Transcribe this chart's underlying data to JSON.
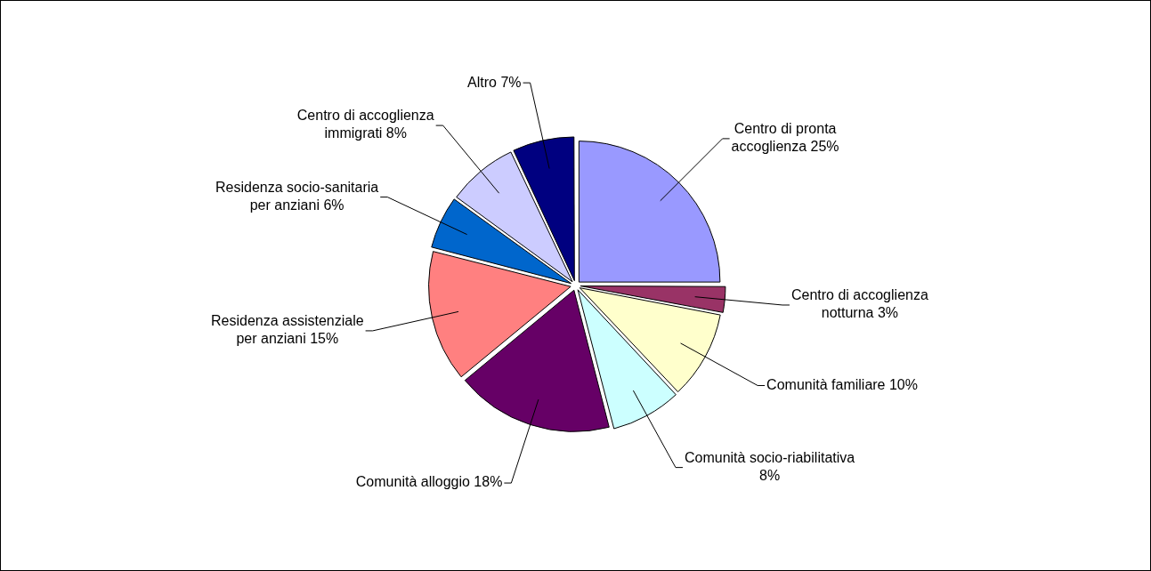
{
  "chart_data": {
    "type": "pie",
    "categories": [
      "Centro di pronta accoglienza",
      "Centro di accoglienza notturna",
      "Comunità familiare",
      "Comunità socio-riabilitativa",
      "Comunità alloggio",
      "Residenza assistenziale per anziani",
      "Residenza socio-sanitaria per anziani",
      "Centro di accoglienza immigrati",
      "Altro"
    ],
    "values": [
      25,
      3,
      10,
      8,
      18,
      15,
      6,
      8,
      7
    ],
    "value_labels": [
      "25%",
      "3%",
      "10%",
      "8%",
      "18%",
      "15%",
      "6%",
      "8%",
      "7%"
    ],
    "colors": [
      "#9999ff",
      "#993366",
      "#ffffcc",
      "#ccffff",
      "#660066",
      "#ff8080",
      "#0066cc",
      "#ccccff",
      "#000080"
    ],
    "legend": false
  }
}
